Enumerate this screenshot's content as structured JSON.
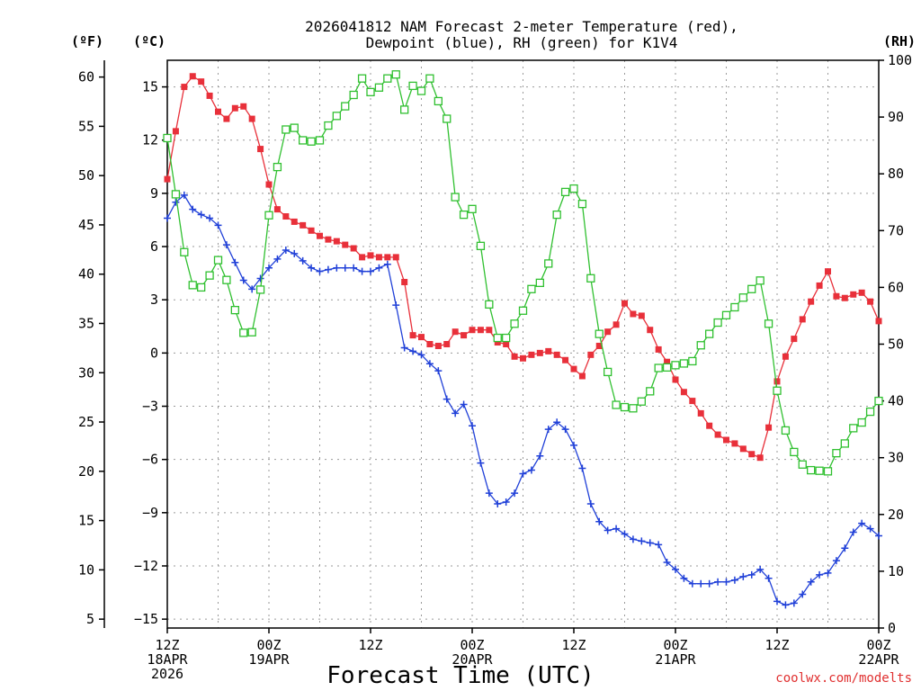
{
  "chart_data": {
    "type": "line",
    "title": [
      "2026041812 NAM Forecast 2-meter Temperature (red),",
      "Dewpoint (blue), RH (green) for K1V4"
    ],
    "xlabel": "Forecast Time (UTC)",
    "credit": "coolwx.com/modelts",
    "units": {
      "fahrenheit": "(ºF)",
      "celsius": "(ºC)",
      "rh": "(RH)"
    },
    "x_range_hours": [
      0,
      84
    ],
    "x_ticks": [
      {
        "hour": 0,
        "lines": [
          "12Z",
          "18APR",
          "2026"
        ]
      },
      {
        "hour": 12,
        "lines": [
          "00Z",
          "19APR"
        ]
      },
      {
        "hour": 24,
        "lines": [
          "12Z"
        ]
      },
      {
        "hour": 36,
        "lines": [
          "00Z",
          "20APR"
        ]
      },
      {
        "hour": 48,
        "lines": [
          "12Z"
        ]
      },
      {
        "hour": 60,
        "lines": [
          "00Z",
          "21APR"
        ]
      },
      {
        "hour": 72,
        "lines": [
          "12Z"
        ]
      },
      {
        "hour": 84,
        "lines": [
          "00Z",
          "22APR"
        ]
      }
    ],
    "y_celsius": {
      "range": [
        -15.5,
        16.5
      ],
      "ticks": [
        "−15",
        "−12",
        "−9",
        "−6",
        "−3",
        "0",
        "3",
        "6",
        "9",
        "12",
        "15"
      ]
    },
    "y_fahrenheit": {
      "ticks": [
        "5",
        "10",
        "15",
        "20",
        "25",
        "30",
        "35",
        "40",
        "45",
        "50",
        "55",
        "60"
      ]
    },
    "y_rh": {
      "range": [
        0,
        100
      ],
      "ticks": [
        "0",
        "10",
        "20",
        "30",
        "40",
        "50",
        "60",
        "70",
        "80",
        "90",
        "100"
      ]
    },
    "grid": true,
    "series": [
      {
        "name": "Temperature",
        "color": "#e8303a",
        "marker": "filled-square",
        "axis": "celsius",
        "hours": [
          0,
          1,
          2,
          3,
          4,
          5,
          6,
          7,
          8,
          9,
          10,
          11,
          12,
          13,
          14,
          15,
          16,
          17,
          18,
          19,
          20,
          21,
          22,
          23,
          24,
          25,
          26,
          27,
          28,
          29,
          30,
          31,
          32,
          33,
          34,
          35,
          36,
          37,
          38,
          39,
          40,
          41,
          42,
          43,
          44,
          45,
          46,
          47,
          48,
          49,
          50,
          51,
          52,
          53,
          54,
          55,
          56,
          57,
          58,
          59,
          60,
          61,
          62,
          63,
          64,
          65,
          66,
          67,
          68,
          69,
          70,
          71,
          72,
          73,
          74,
          75,
          76,
          77,
          78,
          79,
          80,
          81,
          82,
          83,
          84
        ],
        "values": [
          9.8,
          12.5,
          15.0,
          15.6,
          15.3,
          14.5,
          13.6,
          13.2,
          13.8,
          13.9,
          13.2,
          11.5,
          9.5,
          8.1,
          7.7,
          7.4,
          7.2,
          6.9,
          6.6,
          6.4,
          6.3,
          6.1,
          5.9,
          5.4,
          5.5,
          5.4,
          5.4,
          5.4,
          4.0,
          1.0,
          0.9,
          0.5,
          0.4,
          0.5,
          1.2,
          1.0,
          1.3,
          1.3,
          1.3,
          0.6,
          0.5,
          -0.2,
          -0.3,
          -0.1,
          0.0,
          0.1,
          -0.1,
          -0.4,
          -0.9,
          -1.3,
          -0.1,
          0.4,
          1.2,
          1.6,
          2.8,
          2.2,
          2.1,
          1.3,
          0.2,
          -0.5,
          -1.5,
          -2.2,
          -2.7,
          -3.4,
          -4.1,
          -4.6,
          -4.9,
          -5.1,
          -5.4,
          -5.7,
          -5.9,
          -4.2,
          -1.6,
          -0.2,
          0.8,
          1.9,
          2.9,
          3.8,
          4.6,
          3.2,
          3.1,
          3.3,
          3.4,
          2.9,
          1.8
        ]
      },
      {
        "name": "Dewpoint",
        "color": "#2040d8",
        "marker": "plus",
        "axis": "celsius",
        "hours": [
          0,
          1,
          2,
          3,
          4,
          5,
          6,
          7,
          8,
          9,
          10,
          11,
          12,
          13,
          14,
          15,
          16,
          17,
          18,
          19,
          20,
          21,
          22,
          23,
          24,
          25,
          26,
          27,
          28,
          29,
          30,
          31,
          32,
          33,
          34,
          35,
          36,
          37,
          38,
          39,
          40,
          41,
          42,
          43,
          44,
          45,
          46,
          47,
          48,
          49,
          50,
          51,
          52,
          53,
          54,
          55,
          56,
          57,
          58,
          59,
          60,
          61,
          62,
          63,
          64,
          65,
          66,
          67,
          68,
          69,
          70,
          71,
          72,
          73,
          74,
          75,
          76,
          77,
          78,
          79,
          80,
          81,
          82,
          83,
          84
        ],
        "values": [
          7.6,
          8.5,
          8.9,
          8.1,
          7.8,
          7.6,
          7.2,
          6.1,
          5.1,
          4.1,
          3.6,
          4.2,
          4.8,
          5.3,
          5.8,
          5.6,
          5.2,
          4.8,
          4.6,
          4.7,
          4.8,
          4.8,
          4.8,
          4.6,
          4.6,
          4.8,
          5.0,
          2.7,
          0.3,
          0.1,
          -0.1,
          -0.6,
          -1.0,
          -2.6,
          -3.4,
          -2.9,
          -4.1,
          -6.2,
          -7.9,
          -8.5,
          -8.4,
          -7.9,
          -6.8,
          -6.6,
          -5.8,
          -4.3,
          -3.9,
          -4.3,
          -5.2,
          -6.5,
          -8.5,
          -9.5,
          -10.0,
          -9.9,
          -10.2,
          -10.5,
          -10.6,
          -10.7,
          -10.8,
          -11.8,
          -12.2,
          -12.7,
          -13.0,
          -13.0,
          -13.0,
          -12.9,
          -12.9,
          -12.8,
          -12.6,
          -12.5,
          -12.2,
          -12.7,
          -14.0,
          -14.2,
          -14.1,
          -13.6,
          -12.9,
          -12.5,
          -12.4,
          -11.7,
          -11.0,
          -10.1,
          -9.6,
          -9.9,
          -10.3
        ]
      },
      {
        "name": "RH",
        "color": "#30c030",
        "marker": "open-square",
        "axis": "rh",
        "hours": [
          0,
          1,
          2,
          3,
          4,
          5,
          6,
          7,
          8,
          9,
          10,
          11,
          12,
          13,
          14,
          15,
          16,
          17,
          18,
          19,
          20,
          21,
          22,
          23,
          24,
          25,
          26,
          27,
          28,
          29,
          30,
          31,
          32,
          33,
          34,
          35,
          36,
          37,
          38,
          39,
          40,
          41,
          42,
          43,
          44,
          45,
          46,
          47,
          48,
          49,
          50,
          51,
          52,
          53,
          54,
          55,
          56,
          57,
          58,
          59,
          60,
          61,
          62,
          63,
          64,
          65,
          66,
          67,
          68,
          69,
          70,
          71,
          72,
          73,
          74,
          75,
          76,
          77,
          78,
          79,
          80,
          81,
          82,
          83,
          84
        ],
        "values": [
          86.3,
          76.4,
          66.2,
          60.4,
          60.0,
          62.1,
          64.8,
          61.3,
          56.0,
          52.0,
          52.1,
          59.6,
          72.7,
          81.2,
          87.8,
          88.1,
          85.9,
          85.7,
          85.9,
          88.5,
          90.2,
          91.9,
          93.9,
          96.8,
          94.4,
          95.2,
          96.8,
          97.5,
          91.3,
          95.5,
          94.6,
          96.8,
          92.8,
          89.7,
          75.9,
          72.8,
          73.8,
          67.3,
          57.0,
          51.1,
          51.1,
          53.6,
          55.9,
          59.7,
          60.8,
          64.2,
          72.8,
          76.8,
          77.4,
          74.7,
          61.6,
          51.8,
          45.1,
          39.3,
          38.9,
          38.7,
          39.9,
          41.7,
          45.8,
          45.9,
          46.3,
          46.6,
          47.0,
          49.8,
          51.8,
          53.8,
          55.1,
          56.5,
          58.2,
          59.7,
          61.2,
          53.6,
          41.8,
          34.8,
          31.0,
          28.8,
          27.8,
          27.7,
          27.6,
          30.8,
          32.5,
          35.2,
          36.2,
          38.1,
          40.0
        ]
      }
    ]
  }
}
